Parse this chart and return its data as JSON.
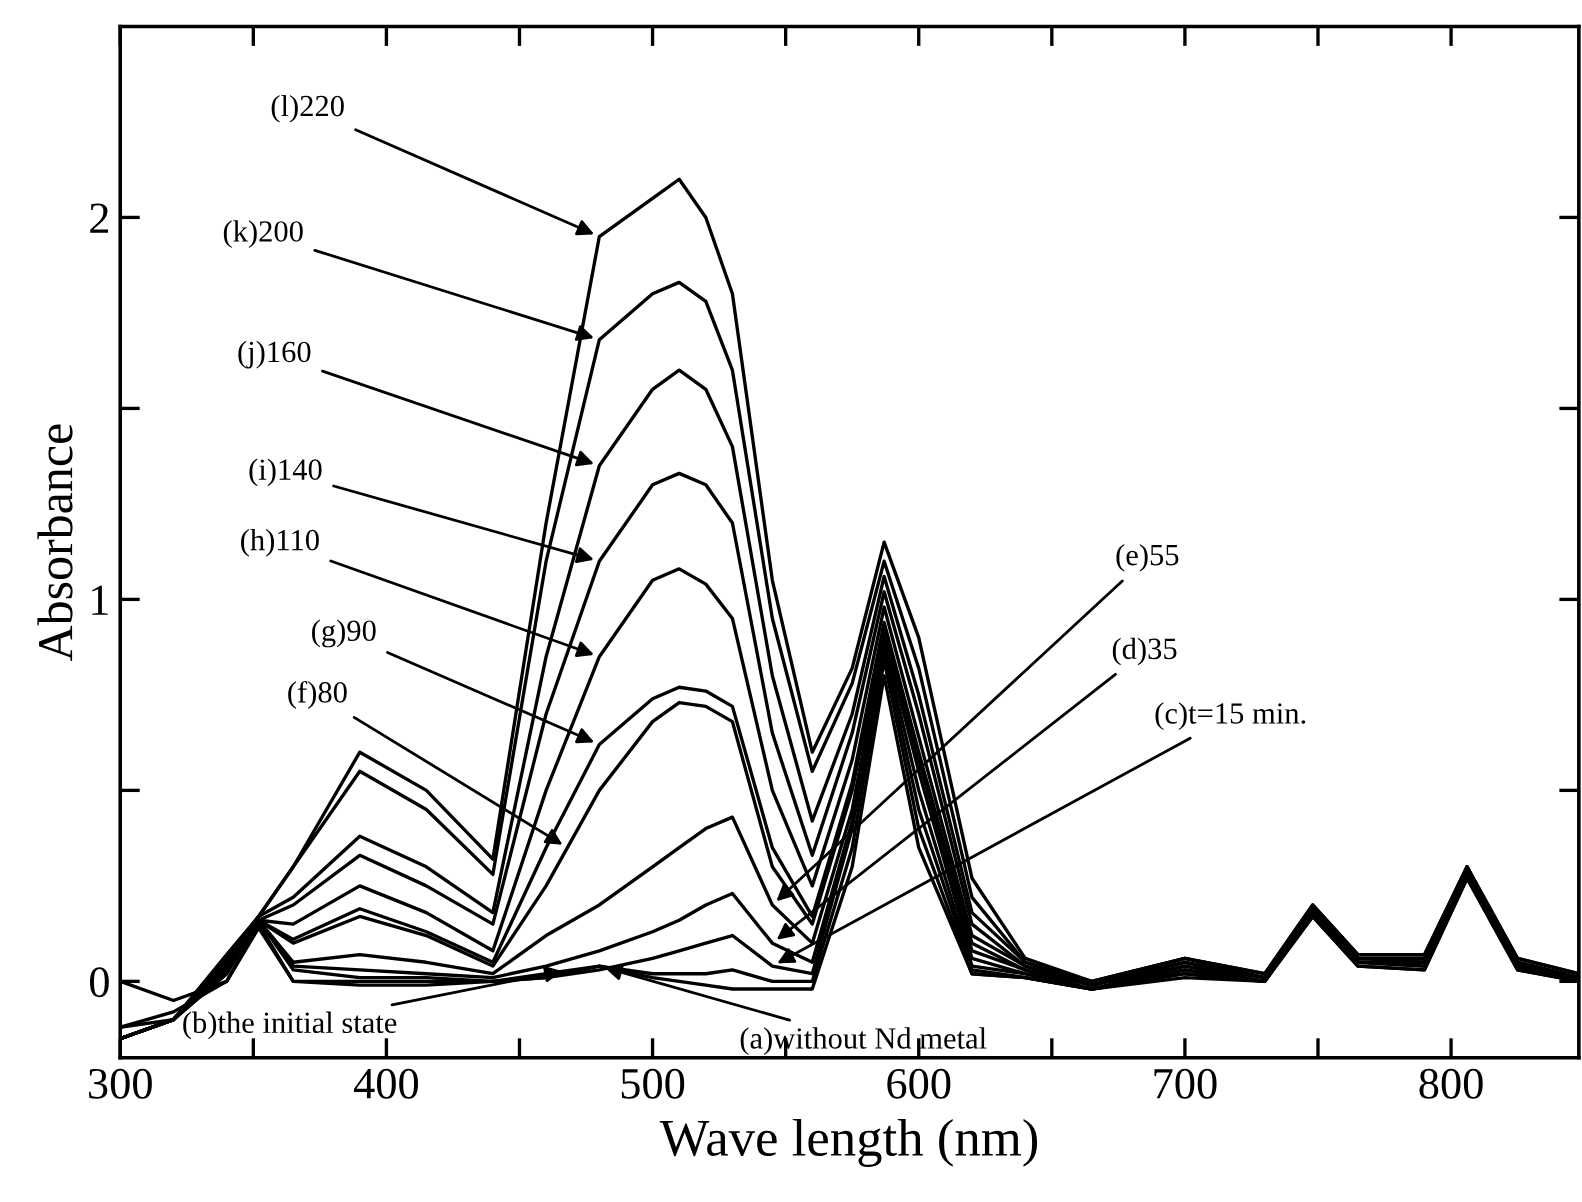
{
  "chart_data": {
    "type": "line",
    "xlabel": "Wave length (nm)",
    "ylabel": "Absorbance",
    "xlim": [
      300,
      848
    ],
    "ylim": [
      -0.2,
      2.5
    ],
    "xticks": [
      300,
      {
        "value": 350,
        "label": null
      },
      400,
      {
        "value": 450,
        "label": null
      },
      500,
      {
        "value": 550,
        "label": null
      },
      600,
      {
        "value": 650,
        "label": null
      },
      700,
      {
        "value": 750,
        "label": null
      },
      800
    ],
    "yticks": [
      0,
      {
        "value": 0.5,
        "label": null
      },
      1,
      {
        "value": 1.5,
        "label": null
      },
      2
    ],
    "x": [
      300,
      320,
      340,
      352,
      365,
      390,
      415,
      440,
      460,
      480,
      500,
      510,
      520,
      530,
      545,
      560,
      575,
      587,
      600,
      620,
      640,
      665,
      700,
      730,
      748,
      765,
      790,
      806,
      825,
      848
    ],
    "series": [
      {
        "color": "#000000",
        "values": [
          0.0,
          -0.05,
          0.0,
          0.14,
          0.0,
          -0.01,
          -0.01,
          0.0,
          0.01,
          0.04,
          0.01,
          0.0,
          -0.01,
          -0.02,
          -0.02,
          -0.02,
          0.3,
          0.8,
          0.35,
          0.02,
          0.01,
          -0.02,
          0.01,
          0.0,
          0.17,
          0.04,
          0.03,
          0.27,
          0.03,
          0.0
        ]
      },
      {
        "color": "#000000",
        "values": [
          -0.12,
          -0.08,
          0.0,
          0.15,
          0.0,
          0.0,
          0.0,
          0.0,
          0.02,
          0.04,
          0.02,
          0.02,
          0.02,
          0.03,
          0.0,
          0.0,
          0.35,
          0.84,
          0.4,
          0.02,
          0.01,
          -0.02,
          0.02,
          0.0,
          0.17,
          0.04,
          0.03,
          0.27,
          0.03,
          0.0
        ]
      },
      {
        "color": "#000000",
        "values": [
          -0.12,
          -0.1,
          0.02,
          0.16,
          0.03,
          0.01,
          0.01,
          0.0,
          0.01,
          0.03,
          0.06,
          0.08,
          0.1,
          0.12,
          0.04,
          0.02,
          0.4,
          0.86,
          0.45,
          0.03,
          0.01,
          -0.02,
          0.02,
          0.0,
          0.18,
          0.05,
          0.04,
          0.28,
          0.04,
          0.0
        ]
      },
      {
        "color": "#000000",
        "values": [
          -0.15,
          -0.1,
          0.02,
          0.16,
          0.04,
          0.03,
          0.02,
          0.01,
          0.04,
          0.08,
          0.13,
          0.16,
          0.2,
          0.23,
          0.1,
          0.05,
          0.42,
          0.88,
          0.5,
          0.04,
          0.02,
          -0.02,
          0.03,
          0.0,
          0.18,
          0.05,
          0.04,
          0.28,
          0.04,
          0.0
        ]
      },
      {
        "color": "#000000",
        "values": [
          -0.15,
          -0.1,
          0.03,
          0.16,
          0.05,
          0.07,
          0.05,
          0.02,
          0.12,
          0.2,
          0.3,
          0.35,
          0.4,
          0.43,
          0.2,
          0.1,
          0.45,
          0.9,
          0.55,
          0.06,
          0.02,
          -0.02,
          0.03,
          0.0,
          0.18,
          0.05,
          0.05,
          0.28,
          0.04,
          0.0
        ]
      },
      {
        "color": "#000000",
        "values": [
          -0.15,
          -0.1,
          0.04,
          0.16,
          0.1,
          0.17,
          0.12,
          0.04,
          0.25,
          0.5,
          0.68,
          0.73,
          0.72,
          0.68,
          0.3,
          0.15,
          0.5,
          0.92,
          0.58,
          0.08,
          0.03,
          -0.02,
          0.04,
          0.0,
          0.18,
          0.05,
          0.05,
          0.28,
          0.04,
          0.01
        ]
      },
      {
        "color": "#000000",
        "values": [
          -0.15,
          -0.1,
          0.04,
          0.16,
          0.11,
          0.19,
          0.13,
          0.05,
          0.35,
          0.62,
          0.74,
          0.77,
          0.76,
          0.72,
          0.35,
          0.17,
          0.52,
          0.94,
          0.6,
          0.1,
          0.03,
          -0.01,
          0.04,
          0.01,
          0.18,
          0.06,
          0.05,
          0.29,
          0.05,
          0.01
        ]
      },
      {
        "color": "#000000",
        "values": [
          -0.15,
          -0.1,
          0.05,
          0.16,
          0.15,
          0.25,
          0.18,
          0.08,
          0.5,
          0.85,
          1.05,
          1.08,
          1.04,
          0.95,
          0.5,
          0.25,
          0.58,
          0.98,
          0.64,
          0.12,
          0.04,
          -0.01,
          0.05,
          0.01,
          0.19,
          0.06,
          0.06,
          0.29,
          0.05,
          0.01
        ]
      },
      {
        "color": "#000000",
        "values": [
          -0.15,
          -0.1,
          0.05,
          0.16,
          0.2,
          0.33,
          0.25,
          0.15,
          0.7,
          1.1,
          1.3,
          1.33,
          1.3,
          1.2,
          0.65,
          0.33,
          0.65,
          1.02,
          0.7,
          0.15,
          0.04,
          -0.01,
          0.05,
          0.01,
          0.19,
          0.06,
          0.06,
          0.29,
          0.05,
          0.01
        ]
      },
      {
        "color": "#000000",
        "values": [
          -0.15,
          -0.1,
          0.06,
          0.17,
          0.22,
          0.38,
          0.3,
          0.18,
          0.85,
          1.35,
          1.55,
          1.6,
          1.55,
          1.4,
          0.8,
          0.42,
          0.7,
          1.06,
          0.75,
          0.18,
          0.05,
          -0.01,
          0.06,
          0.01,
          0.19,
          0.06,
          0.06,
          0.3,
          0.05,
          0.01
        ]
      },
      {
        "color": "#000000",
        "values": [
          -0.15,
          -0.1,
          0.06,
          0.17,
          0.3,
          0.55,
          0.45,
          0.28,
          1.1,
          1.68,
          1.8,
          1.83,
          1.78,
          1.6,
          0.95,
          0.55,
          0.78,
          1.1,
          0.82,
          0.22,
          0.05,
          0.0,
          0.06,
          0.02,
          0.2,
          0.07,
          0.07,
          0.3,
          0.06,
          0.02
        ]
      },
      {
        "color": "#000000",
        "values": [
          -0.15,
          -0.1,
          0.07,
          0.17,
          0.3,
          0.6,
          0.5,
          0.32,
          1.2,
          1.95,
          2.05,
          2.1,
          2.0,
          1.8,
          1.05,
          0.6,
          0.82,
          1.15,
          0.9,
          0.27,
          0.06,
          0.0,
          0.06,
          0.02,
          0.2,
          0.07,
          0.07,
          0.3,
          0.06,
          0.02
        ]
      }
    ],
    "annotations": [
      {
        "text": "(a)without Nd metal",
        "x": 480,
        "y": 0.04
      },
      {
        "text": "(b)the initial state",
        "x": 468,
        "y": 0.03
      },
      {
        "text": "(c)t=15 min.",
        "x": 545,
        "y": 0.04
      },
      {
        "text": "(d)35",
        "x": 545,
        "y": 0.1
      },
      {
        "text": "(e)55",
        "x": 545,
        "y": 0.2
      },
      {
        "text": "(f)80",
        "x": 468,
        "y": 0.35
      },
      {
        "text": "(g)90",
        "x": 480,
        "y": 0.62
      },
      {
        "text": "(h)110",
        "x": 480,
        "y": 0.85
      },
      {
        "text": "(i)140",
        "x": 480,
        "y": 1.1
      },
      {
        "text": "(j)160",
        "x": 480,
        "y": 1.35
      },
      {
        "text": "(k)200",
        "x": 480,
        "y": 1.68
      },
      {
        "text": "(l)220",
        "x": 480,
        "y": 1.95
      }
    ]
  }
}
